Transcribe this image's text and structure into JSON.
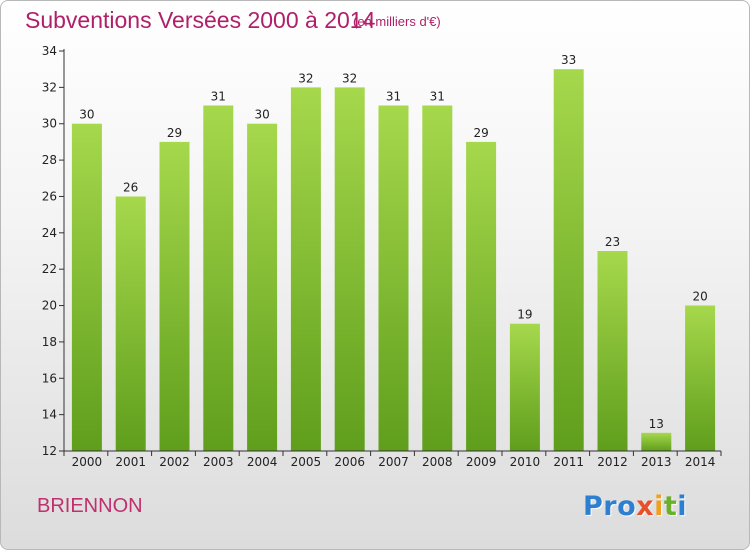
{
  "chart_data": {
    "type": "bar",
    "title": "Subventions Versées 2000 à 2014",
    "subtitle": "(en milliers d'€)",
    "categories": [
      "2000",
      "2001",
      "2002",
      "2003",
      "2004",
      "2005",
      "2006",
      "2007",
      "2008",
      "2009",
      "2010",
      "2011",
      "2012",
      "2013",
      "2014"
    ],
    "values": [
      30,
      26,
      29,
      31,
      30,
      32,
      32,
      31,
      31,
      29,
      19,
      33,
      23,
      13,
      20
    ],
    "yticks": [
      "12",
      "14",
      "16",
      "18",
      "20",
      "22",
      "24",
      "26",
      "28",
      "30",
      "32",
      "34"
    ],
    "ylim": [
      12,
      34
    ],
    "grid": false,
    "legend": "none",
    "bar_color": "#7fbe2e",
    "bar_color_light": "#a6d84c",
    "bar_color_dark": "#5f9e1c"
  },
  "footer": {
    "commune": "BRIENNON",
    "logo": [
      "Pro",
      "x",
      "i",
      "t",
      "i"
    ]
  },
  "colors": {
    "title": "#b0206a",
    "axis": "#333333"
  }
}
